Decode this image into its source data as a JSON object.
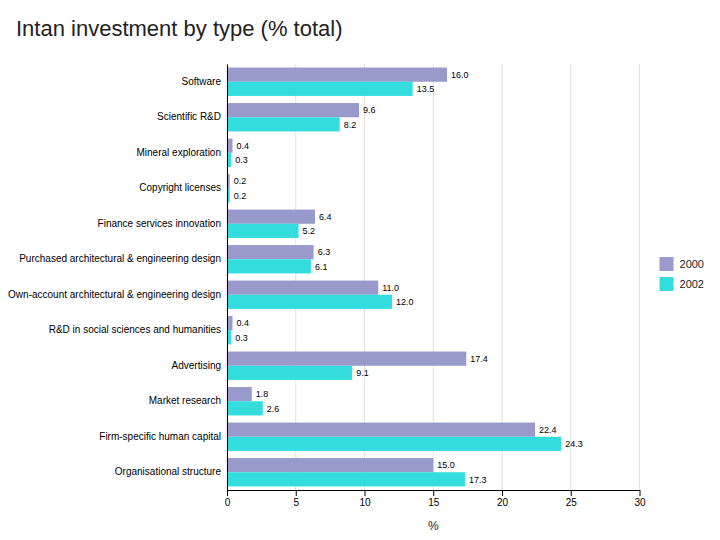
{
  "chart_data": {
    "type": "bar",
    "orientation": "horizontal",
    "title": "Intan investment by type (% total)",
    "categories": [
      "Software",
      "Scientific R&D",
      "Mineral exploration",
      "Copyright licenses",
      "Finance services innovation",
      "Purchased architectural & engineering design",
      "Own-account architectural & engineering design",
      "R&D in social sciences and humanities",
      "Advertising",
      "Market research",
      "Firm-specific human capital",
      "Organisational structure"
    ],
    "series": [
      {
        "name": "2000",
        "color": "#9999CC",
        "values": [
          16.0,
          9.6,
          0.4,
          0.2,
          6.4,
          6.3,
          11.0,
          0.4,
          17.4,
          1.8,
          22.4,
          15.0
        ],
        "value_labels": [
          "16.0",
          "9.6",
          "0.4",
          "0.2",
          "6.4",
          "6.3",
          "11.0",
          "0.4",
          "17.4",
          "1.8",
          "22.4",
          "15.0"
        ]
      },
      {
        "name": "2002",
        "color": "#33DDDD",
        "values": [
          13.5,
          8.2,
          0.3,
          0.2,
          5.2,
          6.1,
          12.0,
          0.3,
          9.1,
          2.6,
          24.3,
          17.3
        ],
        "value_labels": [
          "13.5",
          "8.2",
          "0.3",
          "0.2",
          "5.2",
          "6.1",
          "12.0",
          "0.3",
          "9.1",
          "2.6",
          "24.3",
          "17.3"
        ]
      }
    ],
    "xlabel": "%",
    "xlim": [
      0,
      30
    ],
    "xticks": [
      0,
      5,
      10,
      15,
      20,
      25,
      30
    ],
    "grid": true,
    "data_labels": true,
    "legend": "right"
  }
}
